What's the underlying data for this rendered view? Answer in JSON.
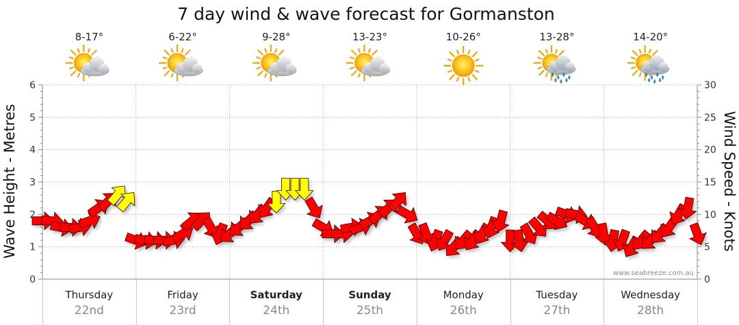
{
  "chart_data": {
    "type": "line",
    "title": "7 day wind & wave forecast for Gormanston",
    "ylabel_left": "Wave Height - Metres",
    "ylabel_right": "Wind Speed - Knots",
    "ylim_left": [
      0,
      6
    ],
    "ylim_right": [
      0,
      30
    ],
    "yticks_left": [
      "0",
      "1",
      "2",
      "3",
      "4",
      "5",
      "6"
    ],
    "yticks_right": [
      "0",
      "5",
      "10",
      "15",
      "20",
      "25",
      "30"
    ],
    "grid": true,
    "credit": "www.seabreeze.com.au",
    "days": [
      {
        "name": "Thursday",
        "date": "22nd",
        "temp": "8-17°",
        "weather": "partly-cloudy",
        "bold": false
      },
      {
        "name": "Friday",
        "date": "23rd",
        "temp": "6-22°",
        "weather": "partly-cloudy",
        "bold": false
      },
      {
        "name": "Saturday",
        "date": "24th",
        "temp": "9-28°",
        "weather": "partly-cloudy",
        "bold": true
      },
      {
        "name": "Sunday",
        "date": "25th",
        "temp": "13-23°",
        "weather": "partly-cloudy",
        "bold": true
      },
      {
        "name": "Monday",
        "date": "26th",
        "temp": "10-26°",
        "weather": "sunny",
        "bold": false
      },
      {
        "name": "Tuesday",
        "date": "27th",
        "temp": "13-28°",
        "weather": "showers",
        "bold": false
      },
      {
        "name": "Wednesday",
        "date": "28th",
        "temp": "14-20°",
        "weather": "showers",
        "bold": false
      }
    ],
    "series": [
      {
        "name": "Wind speed (knots)",
        "x_days": [
          0,
          0.1,
          0.2,
          0.3,
          0.4,
          0.5,
          0.6,
          0.7,
          0.8,
          0.9,
          1.0,
          1.1,
          1.2,
          1.3,
          1.4,
          1.5,
          1.6,
          1.7,
          1.8,
          1.9,
          2.0,
          2.1,
          2.2,
          2.3,
          2.4,
          2.5,
          2.6,
          2.7,
          2.8,
          2.9,
          3.0,
          3.1,
          3.2,
          3.3,
          3.4,
          3.5,
          3.6,
          3.7,
          3.8,
          3.9,
          4.0,
          4.1,
          4.2,
          4.3,
          4.4,
          4.5,
          4.6,
          4.7,
          4.8,
          4.9,
          5.0,
          5.1,
          5.2,
          5.3,
          5.4,
          5.5,
          5.6,
          5.7,
          5.8,
          5.9,
          6.0,
          6.1,
          6.2,
          6.3,
          6.4,
          6.5,
          6.6,
          6.7,
          6.8,
          6.9,
          7.0
        ],
        "values": [
          9,
          9,
          8,
          8,
          8,
          9,
          11,
          12,
          13,
          12,
          6,
          6,
          6,
          6,
          6,
          7,
          9,
          9,
          8,
          7,
          7,
          8,
          9,
          10,
          11,
          12,
          14,
          14,
          14,
          11,
          8,
          7,
          7,
          8,
          8,
          9,
          10,
          11,
          12,
          10,
          7,
          7,
          6,
          6,
          5,
          6,
          6,
          7,
          8,
          9,
          6,
          6,
          7,
          8,
          9,
          9,
          10,
          10,
          9,
          8,
          7,
          6,
          6,
          5,
          6,
          6,
          7,
          8,
          10,
          11,
          7
        ],
        "colors": [
          "red",
          "red",
          "red",
          "red",
          "red",
          "red",
          "red",
          "red",
          "yellow",
          "yellow",
          "red",
          "red",
          "red",
          "red",
          "red",
          "red",
          "red",
          "red",
          "red",
          "red",
          "red",
          "red",
          "red",
          "red",
          "red",
          "yellow",
          "yellow",
          "yellow",
          "yellow",
          "red",
          "red",
          "red",
          "red",
          "red",
          "red",
          "red",
          "red",
          "red",
          "red",
          "red",
          "red",
          "red",
          "red",
          "red",
          "red",
          "red",
          "red",
          "red",
          "red",
          "red",
          "red",
          "red",
          "red",
          "red",
          "red",
          "red",
          "red",
          "red",
          "red",
          "red",
          "red",
          "red",
          "red",
          "red",
          "red",
          "red",
          "red",
          "red",
          "red",
          "red",
          "red"
        ],
        "directions_deg": [
          90,
          95,
          100,
          90,
          80,
          70,
          55,
          45,
          40,
          40,
          110,
          100,
          95,
          90,
          80,
          60,
          50,
          45,
          150,
          200,
          230,
          230,
          225,
          220,
          215,
          180,
          180,
          180,
          180,
          150,
          120,
          90,
          90,
          80,
          70,
          60,
          50,
          45,
          40,
          120,
          150,
          160,
          200,
          210,
          220,
          220,
          215,
          210,
          200,
          195,
          180,
          170,
          150,
          140,
          130,
          120,
          110,
          100,
          120,
          150,
          170,
          190,
          200,
          210,
          220,
          225,
          220,
          215,
          210,
          190,
          160
        ]
      }
    ]
  }
}
